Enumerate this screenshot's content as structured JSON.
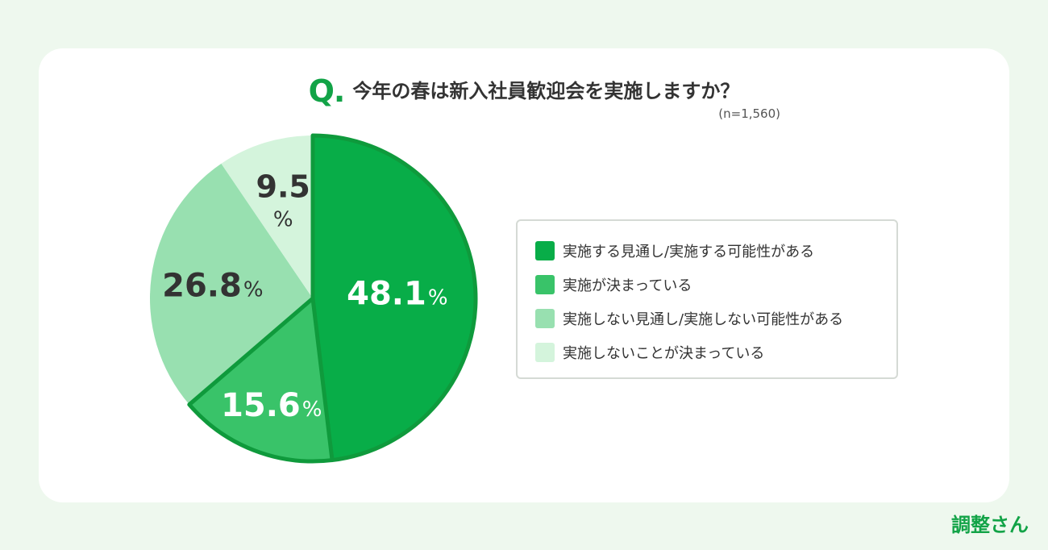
{
  "chart_data": {
    "type": "pie",
    "title": "今年の春は新入社員歓迎会を実施しますか？",
    "title_prefix": "Q.",
    "subtitle": "(n=1,560)",
    "unit": "%",
    "legend_position": "right",
    "slices": [
      {
        "label": "実施する見通し/実施する可能性がある",
        "value": 48.1,
        "value_text": "48.1",
        "color": "#08ad48",
        "text_color": "#ffffff"
      },
      {
        "label": "実施が決まっている",
        "value": 15.6,
        "value_text": "15.6",
        "color": "#39c369",
        "text_color": "#ffffff"
      },
      {
        "label": "実施しない見通し/実施しない可能性がある",
        "value": 26.8,
        "value_text": "26.8",
        "color": "#98e0b0",
        "text_color": "#333333"
      },
      {
        "label": "実施しないことが決まっている",
        "value": 9.5,
        "value_text": "9.5",
        "color": "#d4f4dc",
        "text_color": "#333333"
      }
    ]
  },
  "brand": "調整さん",
  "colors": {
    "accent": "#12a347",
    "pie_border": "#0f9a3c"
  }
}
